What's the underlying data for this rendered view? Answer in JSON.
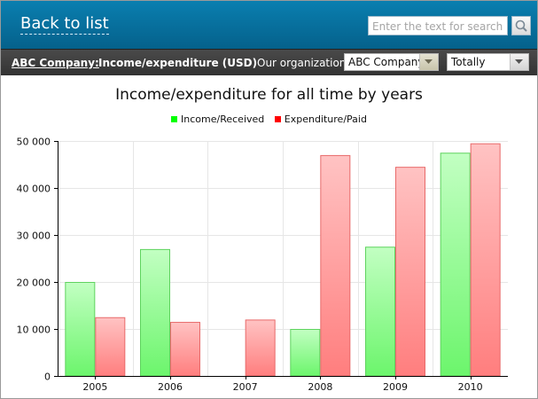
{
  "header": {
    "back_label": "Back to list",
    "search_placeholder": "Enter the text for search",
    "search_icon": "magnifier-icon"
  },
  "toolbar": {
    "company_link": "ABC Company:",
    "heading": "Income/expenditure (USD)",
    "org_label": "Our organization:",
    "org_value": "ABC Company",
    "period_value": "Totally",
    "dropdown_icon": "chevron-down-icon"
  },
  "colors": {
    "header_blue": "#0a7fb0",
    "income": "#00ff00",
    "expenditure": "#ff0000"
  },
  "chart_data": {
    "type": "bar",
    "title": "Income/expenditure for all time by years",
    "categories": [
      "2005",
      "2006",
      "2007",
      "2008",
      "2009",
      "2010"
    ],
    "series": [
      {
        "name": "Income/Received",
        "values": [
          20000,
          27000,
          0,
          10000,
          27500,
          47500
        ]
      },
      {
        "name": "Expenditure/Paid",
        "values": [
          12500,
          11500,
          12000,
          47000,
          44500,
          49500
        ]
      }
    ],
    "ylim": [
      0,
      50000
    ],
    "yticks": [
      0,
      10000,
      20000,
      30000,
      40000,
      50000
    ],
    "ytick_labels": [
      "0",
      "10 000",
      "20 000",
      "30 000",
      "40 000",
      "50 000"
    ],
    "grid": true,
    "legend_position": "top-center"
  }
}
